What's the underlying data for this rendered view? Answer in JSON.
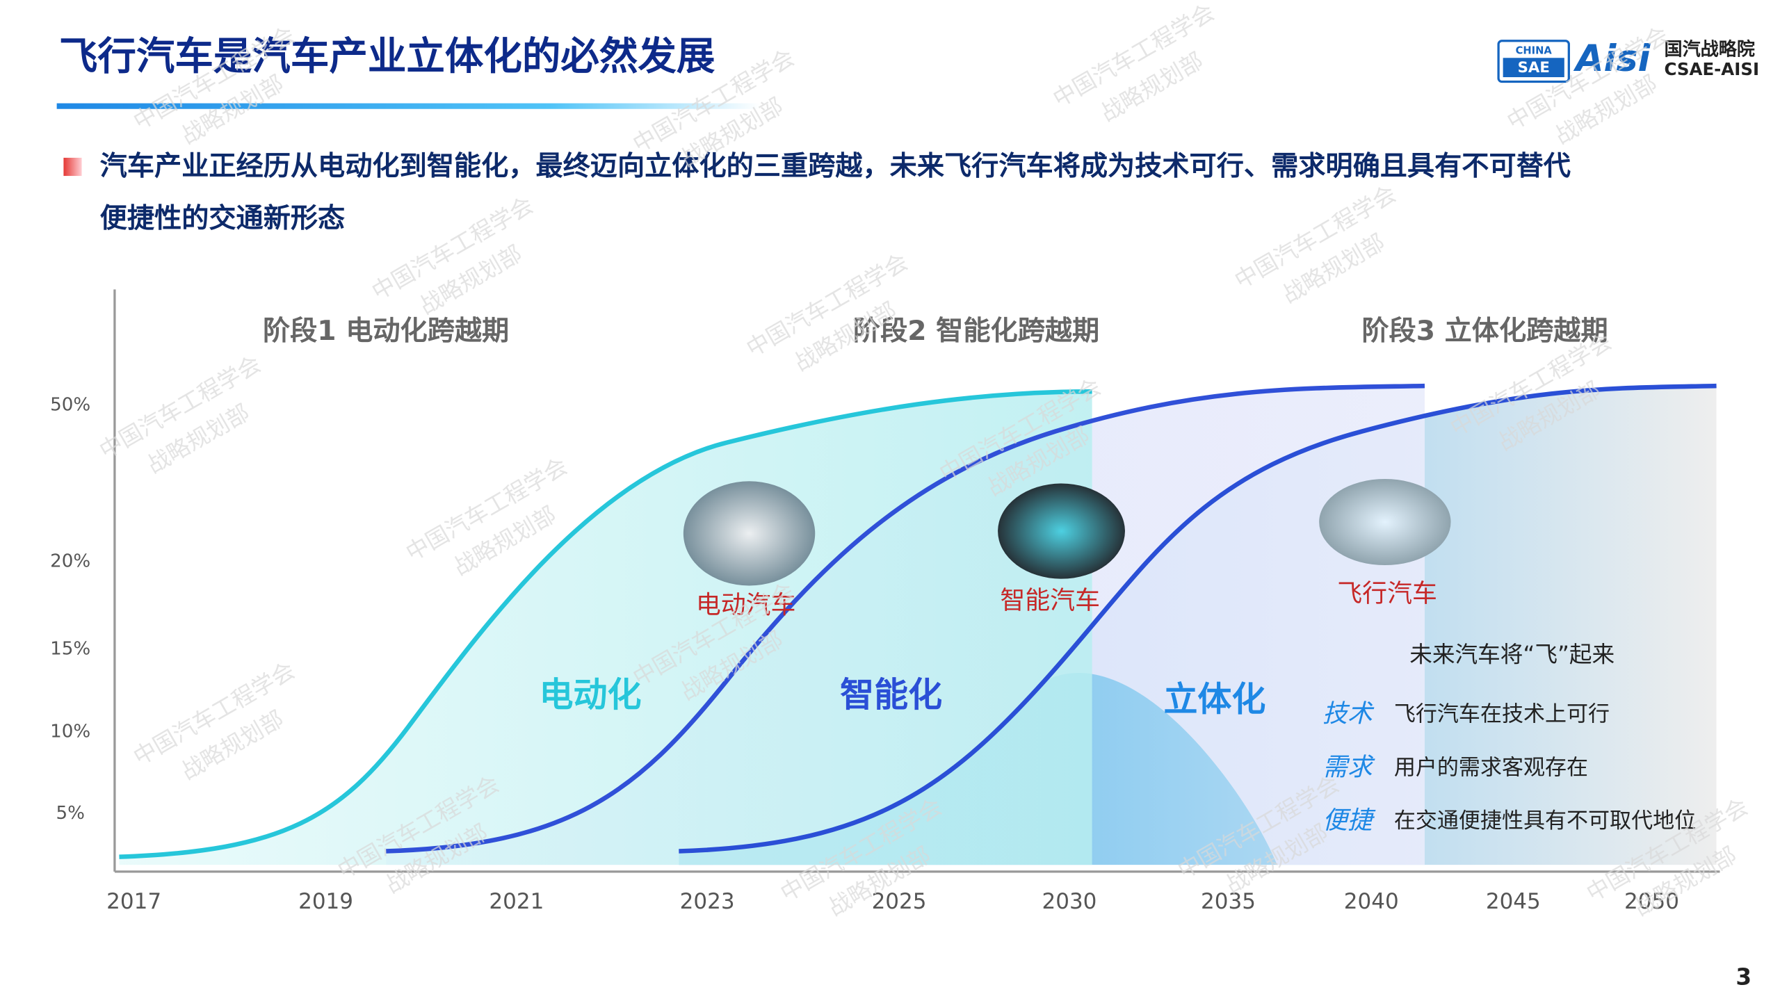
{
  "header": {
    "title": "飞行汽车是汽车产业立体化的必然发展",
    "logo": {
      "badge_top": "CHINA",
      "badge_bottom": "SAE",
      "brand": "Aisi",
      "name_cn": "国汽战略院",
      "name_en": "CSAE-AISI"
    }
  },
  "bullet": {
    "lines": [
      "汽车产业正经历从电动化到智能化，最终迈向立体化的三重跨越，未来飞行汽车将成为技术可行、需求明确且具有不可替代",
      "便捷性的交通新形态"
    ]
  },
  "diagram": {
    "stages": [
      "阶段1 电动化跨越期",
      "阶段2 智能化跨越期",
      "阶段3 立体化跨越期"
    ],
    "y_labels": [
      "50%",
      "20%",
      "15%",
      "10%",
      "5%"
    ],
    "x_labels": [
      "2017",
      "2019",
      "2021",
      "2023",
      "2025",
      "2030",
      "2035",
      "2040",
      "2045",
      "2050"
    ],
    "curve_labels": [
      "电动化",
      "智能化",
      "立体化"
    ],
    "vehicle_labels": [
      "电动汽车",
      "智能汽车",
      "飞行汽车"
    ],
    "box": {
      "heading": "未来汽车将“飞”起来",
      "items": [
        {
          "key": "技术",
          "text": "飞行汽车在技术上可行"
        },
        {
          "key": "需求",
          "text": "用户的需求客观存在"
        },
        {
          "key": "便捷",
          "text": "在交通便捷性具有不可取代地位"
        }
      ]
    }
  },
  "watermark": [
    "中国汽车工程学会",
    "战略规划部"
  ],
  "page_number": "3"
}
